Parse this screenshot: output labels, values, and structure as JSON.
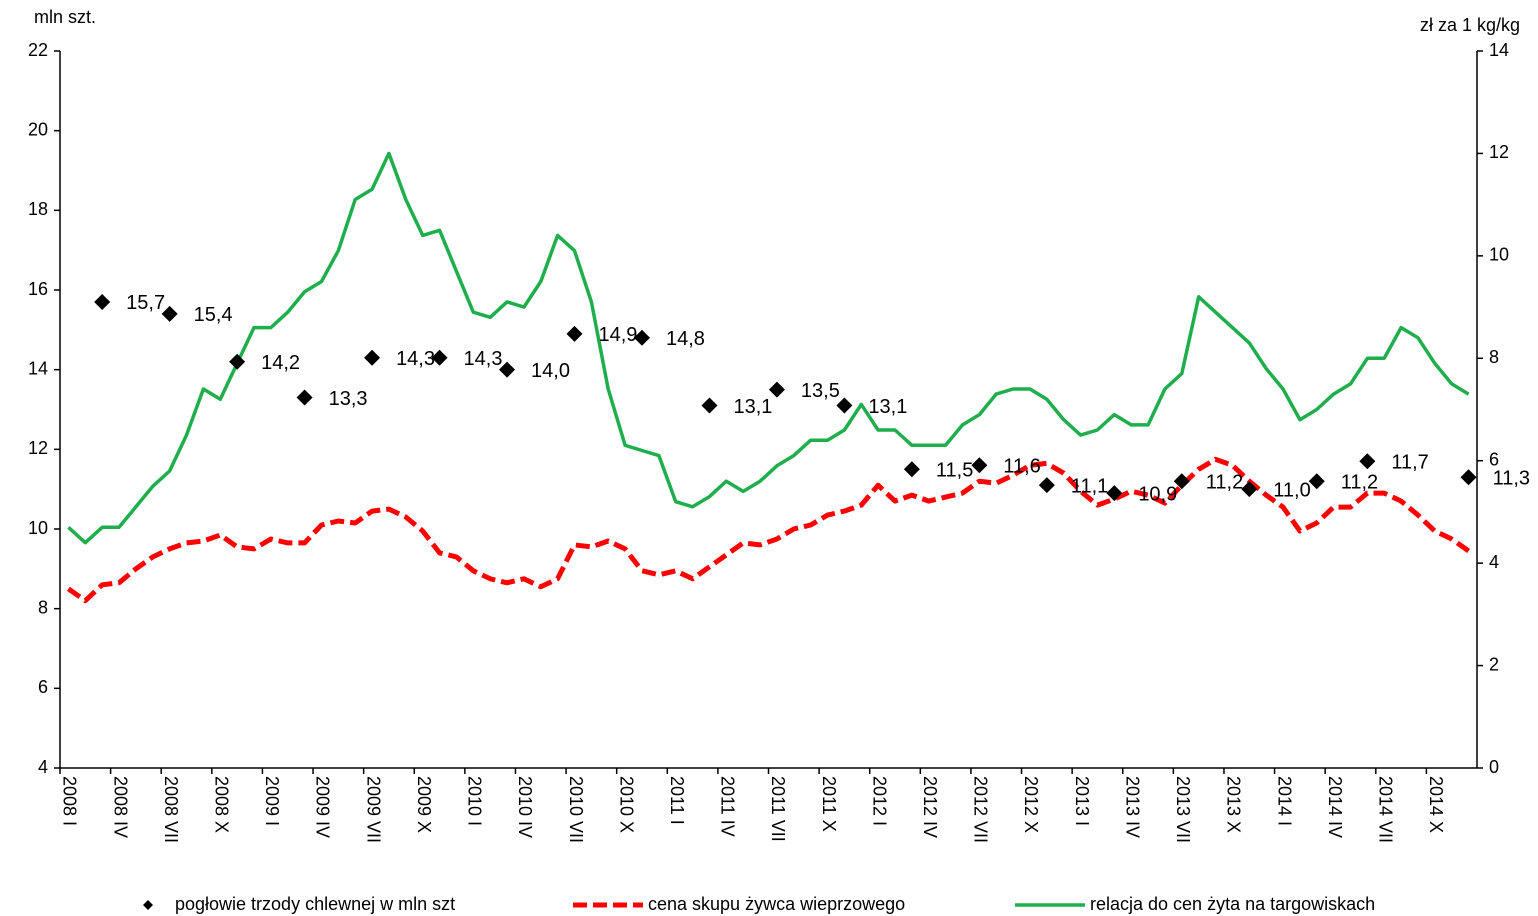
{
  "chart_data": {
    "type": "line",
    "y_label": "mln szt.",
    "y2_label": "zł za 1 kg/kg",
    "categories": [
      "2008 I",
      null,
      null,
      "2008 IV",
      null,
      null,
      "2008 VII",
      null,
      null,
      "2008 X",
      null,
      null,
      "2009 I",
      null,
      null,
      "2009 IV",
      null,
      null,
      "2009 VII",
      null,
      null,
      "2009 X",
      null,
      null,
      "2010 I",
      null,
      null,
      "2010 IV",
      null,
      null,
      "2010 VII",
      null,
      null,
      "2010 X",
      null,
      null,
      "2011 I",
      null,
      null,
      "2011 IV",
      null,
      null,
      "2011 VII",
      null,
      null,
      "2011 X",
      null,
      null,
      "2012 I",
      null,
      null,
      "2012 IV",
      null,
      null,
      "2012 VII",
      null,
      null,
      "2012 X",
      null,
      null,
      "2013 I",
      null,
      null,
      "2013 IV",
      null,
      null,
      "2013 VII",
      null,
      null,
      "2013 X",
      null,
      null,
      "2014 I",
      null,
      null,
      "2014 IV",
      null,
      null,
      "2014 VII",
      null,
      null,
      "2014 X",
      null,
      null
    ],
    "ylim": [
      4,
      22
    ],
    "yticks": [
      4,
      6,
      8,
      10,
      12,
      14,
      16,
      18,
      20,
      22
    ],
    "y2lim": [
      0,
      14
    ],
    "y2ticks": [
      0,
      2,
      4,
      6,
      8,
      10,
      12,
      14
    ],
    "series": [
      {
        "name": "pogłowie trzody chlewnej w mln szt",
        "type": "scatter",
        "color": "#000000",
        "axis": "y",
        "values": [
          null,
          null,
          15.7,
          null,
          null,
          null,
          15.4,
          null,
          null,
          null,
          14.2,
          null,
          null,
          null,
          13.3,
          null,
          null,
          null,
          14.3,
          null,
          null,
          null,
          14.3,
          null,
          null,
          null,
          14.0,
          null,
          null,
          null,
          14.9,
          null,
          null,
          null,
          14.8,
          null,
          null,
          null,
          13.1,
          null,
          null,
          null,
          13.5,
          null,
          null,
          null,
          13.1,
          null,
          null,
          null,
          11.5,
          null,
          null,
          null,
          11.6,
          null,
          null,
          null,
          11.1,
          null,
          null,
          null,
          10.9,
          null,
          null,
          null,
          11.2,
          null,
          null,
          null,
          11.0,
          null,
          null,
          null,
          11.2,
          null,
          null,
          11.7,
          null,
          null,
          null,
          null,
          null,
          11.3
        ],
        "value_labels": [
          null,
          null,
          "15,7",
          null,
          null,
          null,
          "15,4",
          null,
          null,
          null,
          "14,2",
          null,
          null,
          null,
          "13,3",
          null,
          null,
          null,
          "14,3",
          null,
          null,
          null,
          "14,3",
          null,
          null,
          null,
          "14,0",
          null,
          null,
          null,
          "14,9",
          null,
          null,
          null,
          "14,8",
          null,
          null,
          null,
          "13,1",
          null,
          null,
          null,
          "13,5",
          null,
          null,
          null,
          "13,1",
          null,
          null,
          null,
          "11,5",
          null,
          null,
          null,
          "11,6",
          null,
          null,
          null,
          "11,1",
          null,
          null,
          null,
          "10,9",
          null,
          null,
          null,
          "11,2",
          null,
          null,
          null,
          "11,0",
          null,
          null,
          null,
          "11,2",
          null,
          null,
          "11,7",
          null,
          null,
          null,
          null,
          null,
          "11,3"
        ]
      },
      {
        "name": "cena skupu żywca wieprzowego",
        "type": "line",
        "dashed": true,
        "color": "#ff0000",
        "axis": "y",
        "values": [
          8.5,
          8.2,
          8.6,
          8.65,
          9.0,
          9.3,
          9.5,
          9.65,
          9.7,
          9.85,
          9.55,
          9.5,
          9.75,
          9.65,
          9.65,
          10.1,
          10.2,
          10.15,
          10.45,
          10.5,
          10.3,
          9.95,
          9.4,
          9.3,
          8.95,
          8.75,
          8.65,
          8.75,
          8.55,
          8.75,
          9.6,
          9.55,
          9.7,
          9.5,
          8.95,
          8.85,
          8.95,
          8.75,
          9.05,
          9.35,
          9.65,
          9.6,
          9.75,
          10.0,
          10.1,
          10.35,
          10.45,
          10.6,
          11.1,
          10.7,
          10.85,
          10.7,
          10.8,
          10.9,
          11.2,
          11.15,
          11.35,
          11.6,
          11.65,
          11.4,
          10.95,
          10.6,
          10.75,
          10.95,
          10.85,
          10.65,
          11.1,
          11.5,
          11.75,
          11.6,
          11.2,
          10.85,
          10.55,
          9.95,
          10.15,
          10.55,
          10.55,
          10.9,
          10.9,
          10.7,
          10.35,
          9.95,
          9.75,
          9.45
        ]
      },
      {
        "name": "relacja do cen żyta na targowiskach",
        "type": "line",
        "dashed": false,
        "color": "#1fae4b",
        "axis": "y2",
        "values": [
          4.7,
          4.4,
          4.7,
          4.7,
          5.1,
          5.5,
          5.8,
          6.5,
          7.4,
          7.2,
          7.9,
          8.6,
          8.6,
          8.9,
          9.3,
          9.5,
          10.1,
          11.1,
          11.3,
          12.0,
          11.1,
          10.4,
          10.5,
          9.7,
          8.9,
          8.8,
          9.1,
          9.0,
          9.5,
          10.4,
          10.1,
          9.1,
          7.4,
          6.3,
          6.2,
          6.1,
          5.2,
          5.1,
          5.3,
          5.6,
          5.4,
          5.6,
          5.9,
          6.1,
          6.4,
          6.4,
          6.6,
          7.1,
          6.6,
          6.6,
          6.3,
          6.3,
          6.3,
          6.7,
          6.9,
          7.3,
          7.4,
          7.4,
          7.2,
          6.8,
          6.5,
          6.6,
          6.9,
          6.7,
          6.7,
          7.4,
          7.7,
          9.2,
          8.9,
          8.6,
          8.3,
          7.8,
          7.4,
          6.8,
          7.0,
          7.3,
          7.5,
          8.0,
          8.0,
          8.6,
          8.4,
          7.9,
          7.5,
          7.3
        ]
      }
    ]
  }
}
